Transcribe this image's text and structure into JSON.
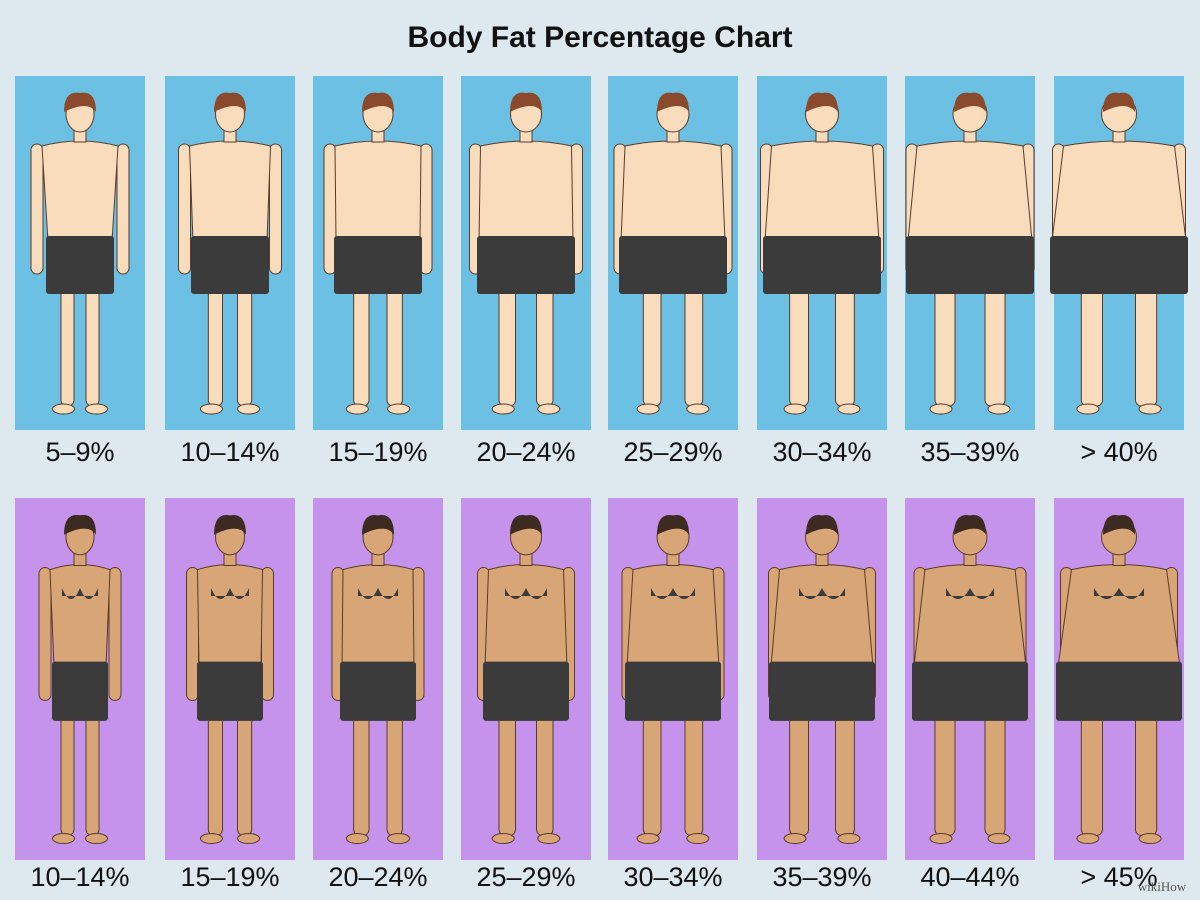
{
  "title": "Body Fat Percentage Chart",
  "men": {
    "labels": [
      "5–9%",
      "10–14%",
      "15–19%",
      "20–24%",
      "25–29%",
      "30–34%",
      "35–39%",
      "> 40%"
    ]
  },
  "women": {
    "labels": [
      "10–14%",
      "15–19%",
      "20–24%",
      "25–29%",
      "30–34%",
      "35–39%",
      "40–44%",
      "> 45%"
    ]
  },
  "watermark": "wikiHow"
}
